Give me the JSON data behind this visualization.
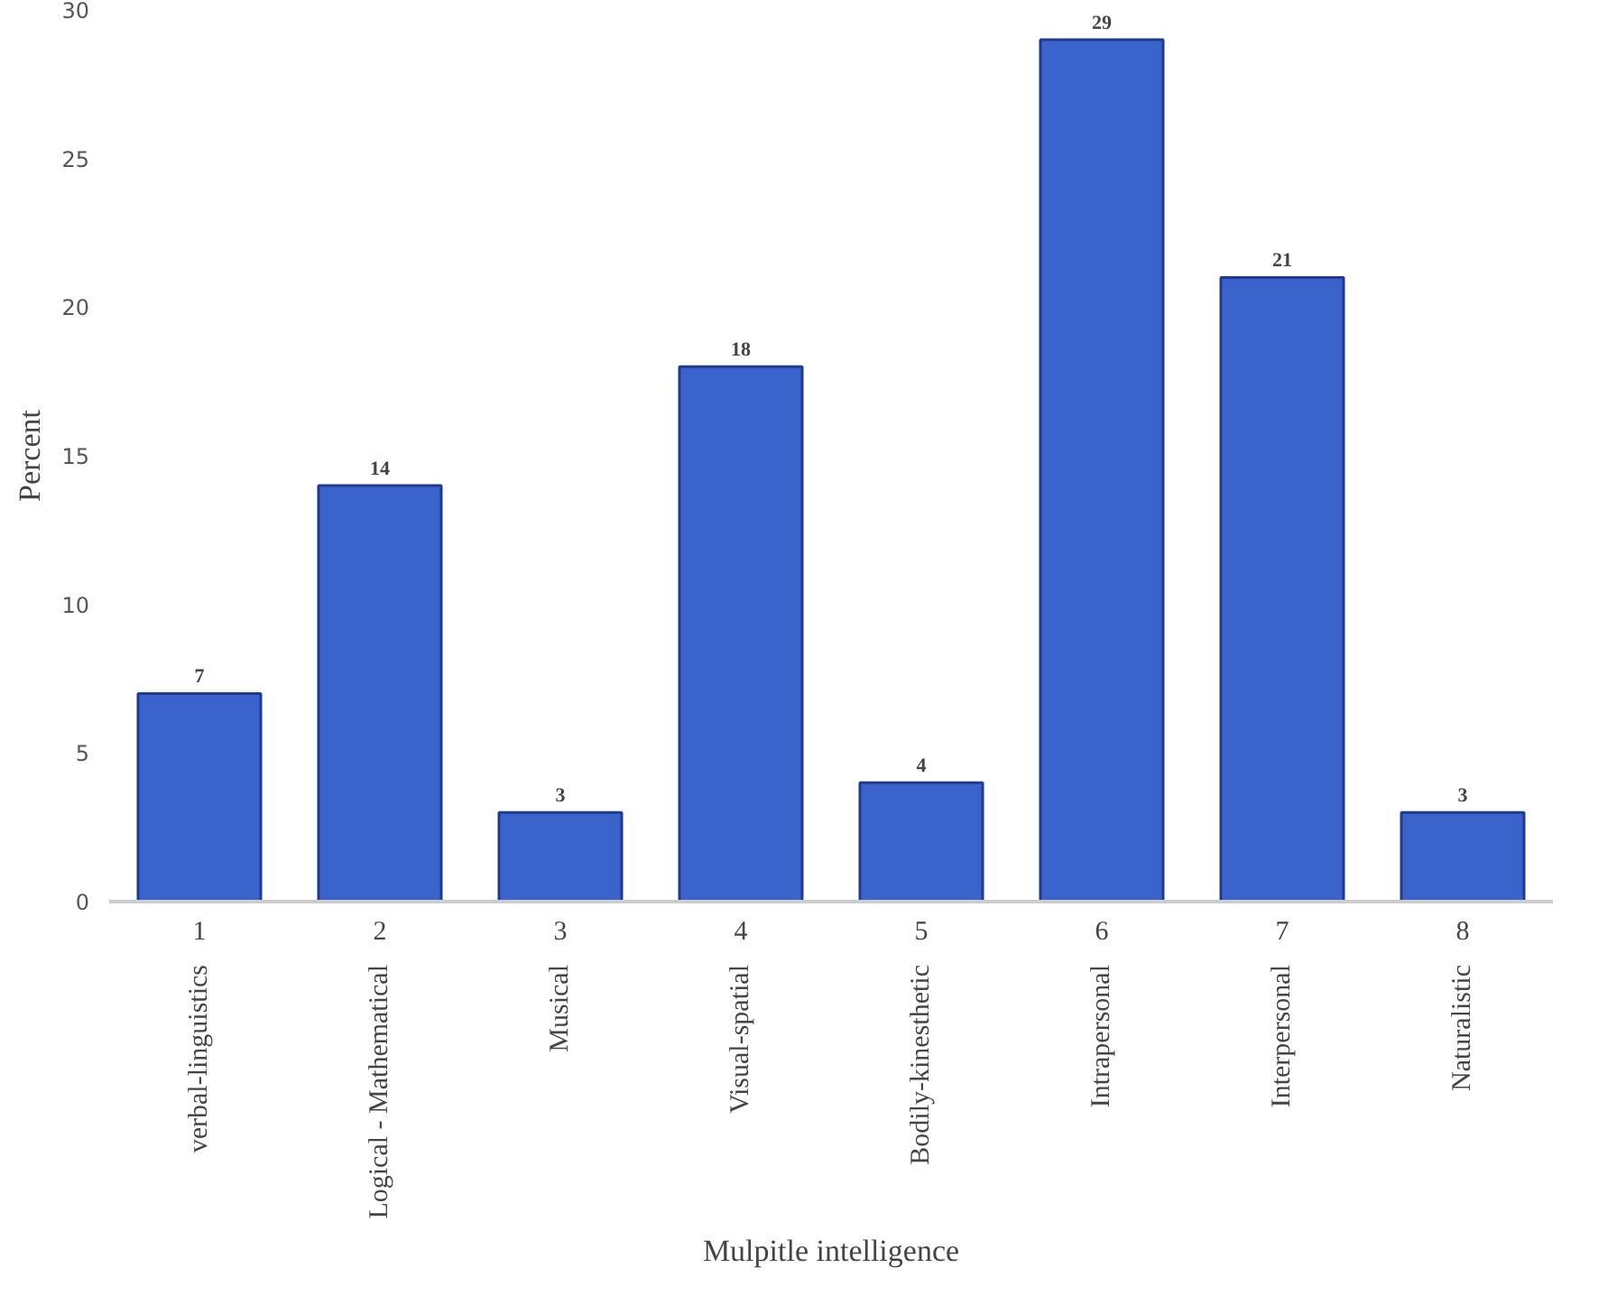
{
  "chart_data": {
    "type": "bar",
    "xlabel": "Mulpitle intelligence",
    "ylabel": "Percent",
    "categories": [
      "verbal-linguistics",
      "Logical - Mathematical",
      "Musical",
      "Visual-spatial",
      "Bodily-kinesthetic",
      "Intrapersonal",
      "Interpersonal",
      "Naturalistic"
    ],
    "values": [
      7,
      14,
      3,
      18,
      4,
      29,
      21,
      3
    ],
    "color": "#3a63cc",
    "ylim": [
      0,
      30
    ],
    "yticks": [
      0,
      5,
      10,
      15,
      20,
      25,
      30
    ],
    "grid": false,
    "data_labels": true,
    "annotations": [
      "1",
      "2",
      "3",
      "4",
      "5",
      "6",
      "7",
      "8"
    ]
  }
}
